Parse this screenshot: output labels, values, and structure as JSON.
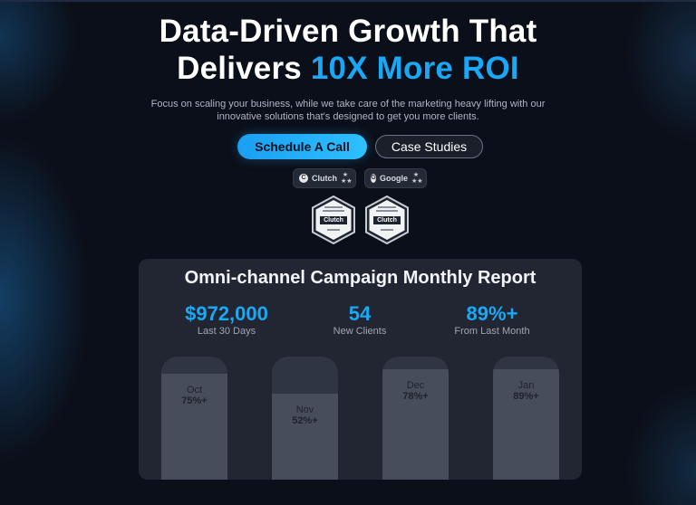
{
  "hero": {
    "title_line1": "Data-Driven Growth That",
    "title_line2_plain": "Delivers ",
    "title_line2_accent": "10X More ROI",
    "subtitle": "Focus on scaling your business, while we take care of the marketing heavy lifting with our innovative solutions that's designed to get you more clients."
  },
  "buttons": {
    "primary_label": "Schedule A Call",
    "secondary_label": "Case Studies"
  },
  "ratings": [
    {
      "logo": "C",
      "name": "Clutch",
      "stars": "★ ★★"
    },
    {
      "logo": "G",
      "name": "Google",
      "stars": "★ ★★"
    }
  ],
  "badges": [
    {
      "brand": "Clutch"
    },
    {
      "brand": "Clutch"
    }
  ],
  "report": {
    "title": "Omni-channel Campaign Monthly Report",
    "stats": [
      {
        "value": "$972,000",
        "caption": "Last 30 Days"
      },
      {
        "value": "54",
        "caption": "New Clients"
      },
      {
        "value": "89%+",
        "caption": "From Last Month"
      }
    ],
    "bars": [
      {
        "month": "Oct",
        "pct_label": "75%+",
        "level": 0.75
      },
      {
        "month": "Nov",
        "pct_label": "52%+",
        "level": 0.52
      },
      {
        "month": "Dec",
        "pct_label": "78%+",
        "level": 0.78
      },
      {
        "month": "Jan",
        "pct_label": "89%+",
        "level": 0.89
      }
    ]
  },
  "colors": {
    "accent": "#1aa7f5",
    "background": "#0b0f19",
    "panel": "#262c38"
  }
}
